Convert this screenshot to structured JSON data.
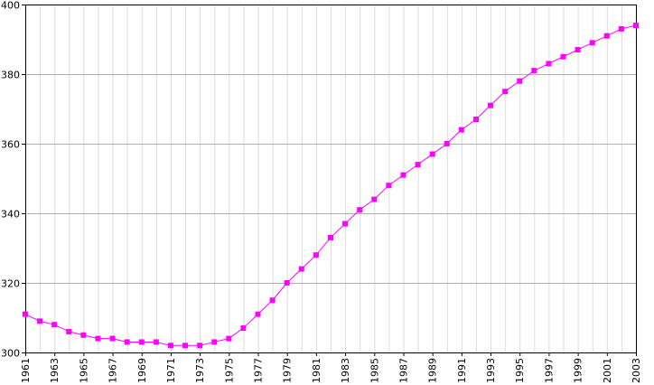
{
  "chart_data": {
    "type": "line",
    "title": "",
    "xlabel": "",
    "ylabel": "",
    "xlim": [
      1961,
      2003
    ],
    "ylim": [
      300,
      400
    ],
    "grid": true,
    "x_tick_labels": [
      "1961",
      "1963",
      "1965",
      "1967",
      "1969",
      "1971",
      "1973",
      "1975",
      "1977",
      "1979",
      "1981",
      "1983",
      "1985",
      "1987",
      "1989",
      "1991",
      "1993",
      "1995",
      "1997",
      "1999",
      "2001",
      "2003"
    ],
    "y_tick_labels": [
      "300",
      "320",
      "340",
      "360",
      "380",
      "400"
    ],
    "series": [
      {
        "color": "#ff00ff",
        "marker": "square",
        "x": [
          1961,
          1962,
          1963,
          1964,
          1965,
          1966,
          1967,
          1968,
          1969,
          1970,
          1971,
          1972,
          1973,
          1974,
          1975,
          1976,
          1977,
          1978,
          1979,
          1980,
          1981,
          1982,
          1983,
          1984,
          1985,
          1986,
          1987,
          1988,
          1989,
          1990,
          1991,
          1992,
          1993,
          1994,
          1995,
          1996,
          1997,
          1998,
          1999,
          2000,
          2001,
          2002,
          2003
        ],
        "values": [
          311,
          309,
          308,
          306,
          305,
          304,
          304,
          303,
          303,
          303,
          302,
          302,
          302,
          303,
          304,
          307,
          311,
          315,
          320,
          324,
          328,
          333,
          337,
          341,
          344,
          348,
          351,
          354,
          357,
          360,
          364,
          367,
          371,
          375,
          378,
          381,
          383,
          385,
          387,
          389,
          391,
          393,
          394
        ]
      }
    ]
  }
}
